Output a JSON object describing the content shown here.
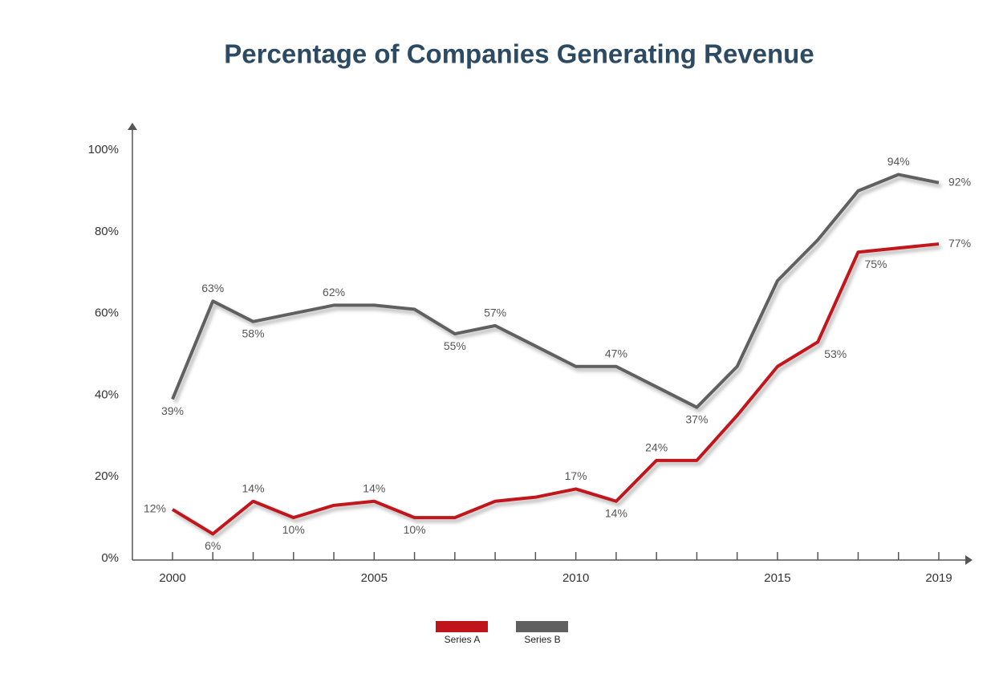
{
  "chart_data": {
    "type": "line",
    "title": "Percentage of Companies Generating Revenue",
    "x": [
      2000,
      2001,
      2002,
      2003,
      2004,
      2005,
      2006,
      2007,
      2008,
      2009,
      2010,
      2011,
      2012,
      2013,
      2014,
      2015,
      2016,
      2017,
      2018,
      2019
    ],
    "series": [
      {
        "name": "Series A",
        "color": "#c0141c",
        "values": [
          12,
          6,
          14,
          10,
          13,
          14,
          10,
          10,
          14,
          15,
          17,
          14,
          24,
          24,
          35,
          47,
          53,
          75,
          76,
          77
        ],
        "value_labels": [
          "12%",
          "6%",
          "14%",
          "10%",
          null,
          "14%",
          "10%",
          null,
          null,
          null,
          "17%",
          "14%",
          "24%",
          null,
          null,
          null,
          "53%",
          "75%",
          null,
          "77%"
        ]
      },
      {
        "name": "Series B",
        "color": "#606060",
        "values": [
          39,
          63,
          58,
          60,
          62,
          62,
          61,
          55,
          57,
          52,
          47,
          47,
          42,
          37,
          47,
          68,
          78,
          90,
          94,
          92
        ],
        "value_labels": [
          "39%",
          "63%",
          "58%",
          null,
          "62%",
          null,
          null,
          "55%",
          "57%",
          null,
          null,
          "47%",
          null,
          "37%",
          null,
          null,
          null,
          null,
          "94%",
          "92%"
        ]
      }
    ],
    "xlim": [
      2000,
      2019
    ],
    "xticks": [
      2000,
      2005,
      2010,
      2015,
      2019
    ],
    "ylim": [
      0,
      100
    ],
    "yticks": [
      {
        "value": 0,
        "label": "0%"
      },
      {
        "value": 20,
        "label": "20%"
      },
      {
        "value": 40,
        "label": "40%"
      },
      {
        "value": 60,
        "label": "60%"
      },
      {
        "value": 80,
        "label": "80%"
      },
      {
        "value": 100,
        "label": "100%"
      }
    ],
    "legend": "bottom"
  }
}
